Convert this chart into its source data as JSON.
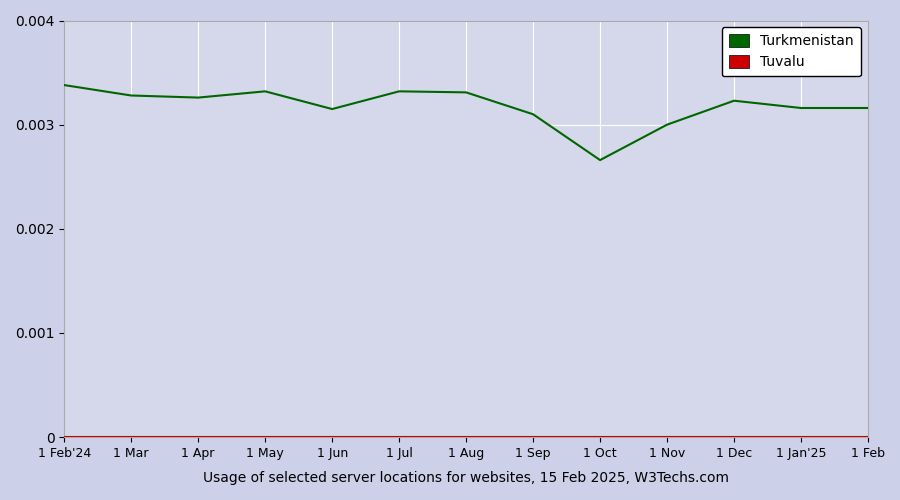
{
  "title": "",
  "xlabel": "Usage of selected server locations for websites, 15 Feb 2025, W3Techs.com",
  "ylabel": "",
  "background_color": "#ccd0e8",
  "plot_bg_color": "#d5d8ea",
  "ylim": [
    0,
    0.004
  ],
  "yticks": [
    0,
    0.001,
    0.002,
    0.003,
    0.004
  ],
  "x_labels": [
    "1 Feb'24",
    "1 Mar",
    "1 Apr",
    "1 May",
    "1 Jun",
    "1 Jul",
    "1 Aug",
    "1 Sep",
    "1 Oct",
    "1 Nov",
    "1 Dec",
    "1 Jan'25",
    "1 Feb"
  ],
  "turkmenistan_values": [
    0.00338,
    0.00328,
    0.00326,
    0.00332,
    0.00315,
    0.00332,
    0.00331,
    0.0031,
    0.00266,
    0.003,
    0.00323,
    0.00316,
    0.00316
  ],
  "tuvalu_values": [
    0.0,
    0.0,
    0.0,
    0.0,
    0.0,
    0.0,
    0.0,
    0.0,
    0.0,
    0.0,
    0.0,
    0.0,
    0.0
  ],
  "turkmenistan_color": "#006600",
  "tuvalu_color": "#cc0000",
  "legend_turkmenistan_box": "#006600",
  "legend_tuvalu_box": "#cc0000",
  "grid_color": "#ffffff",
  "line_width": 1.5,
  "figsize": [
    9.0,
    5.0
  ],
  "dpi": 100
}
